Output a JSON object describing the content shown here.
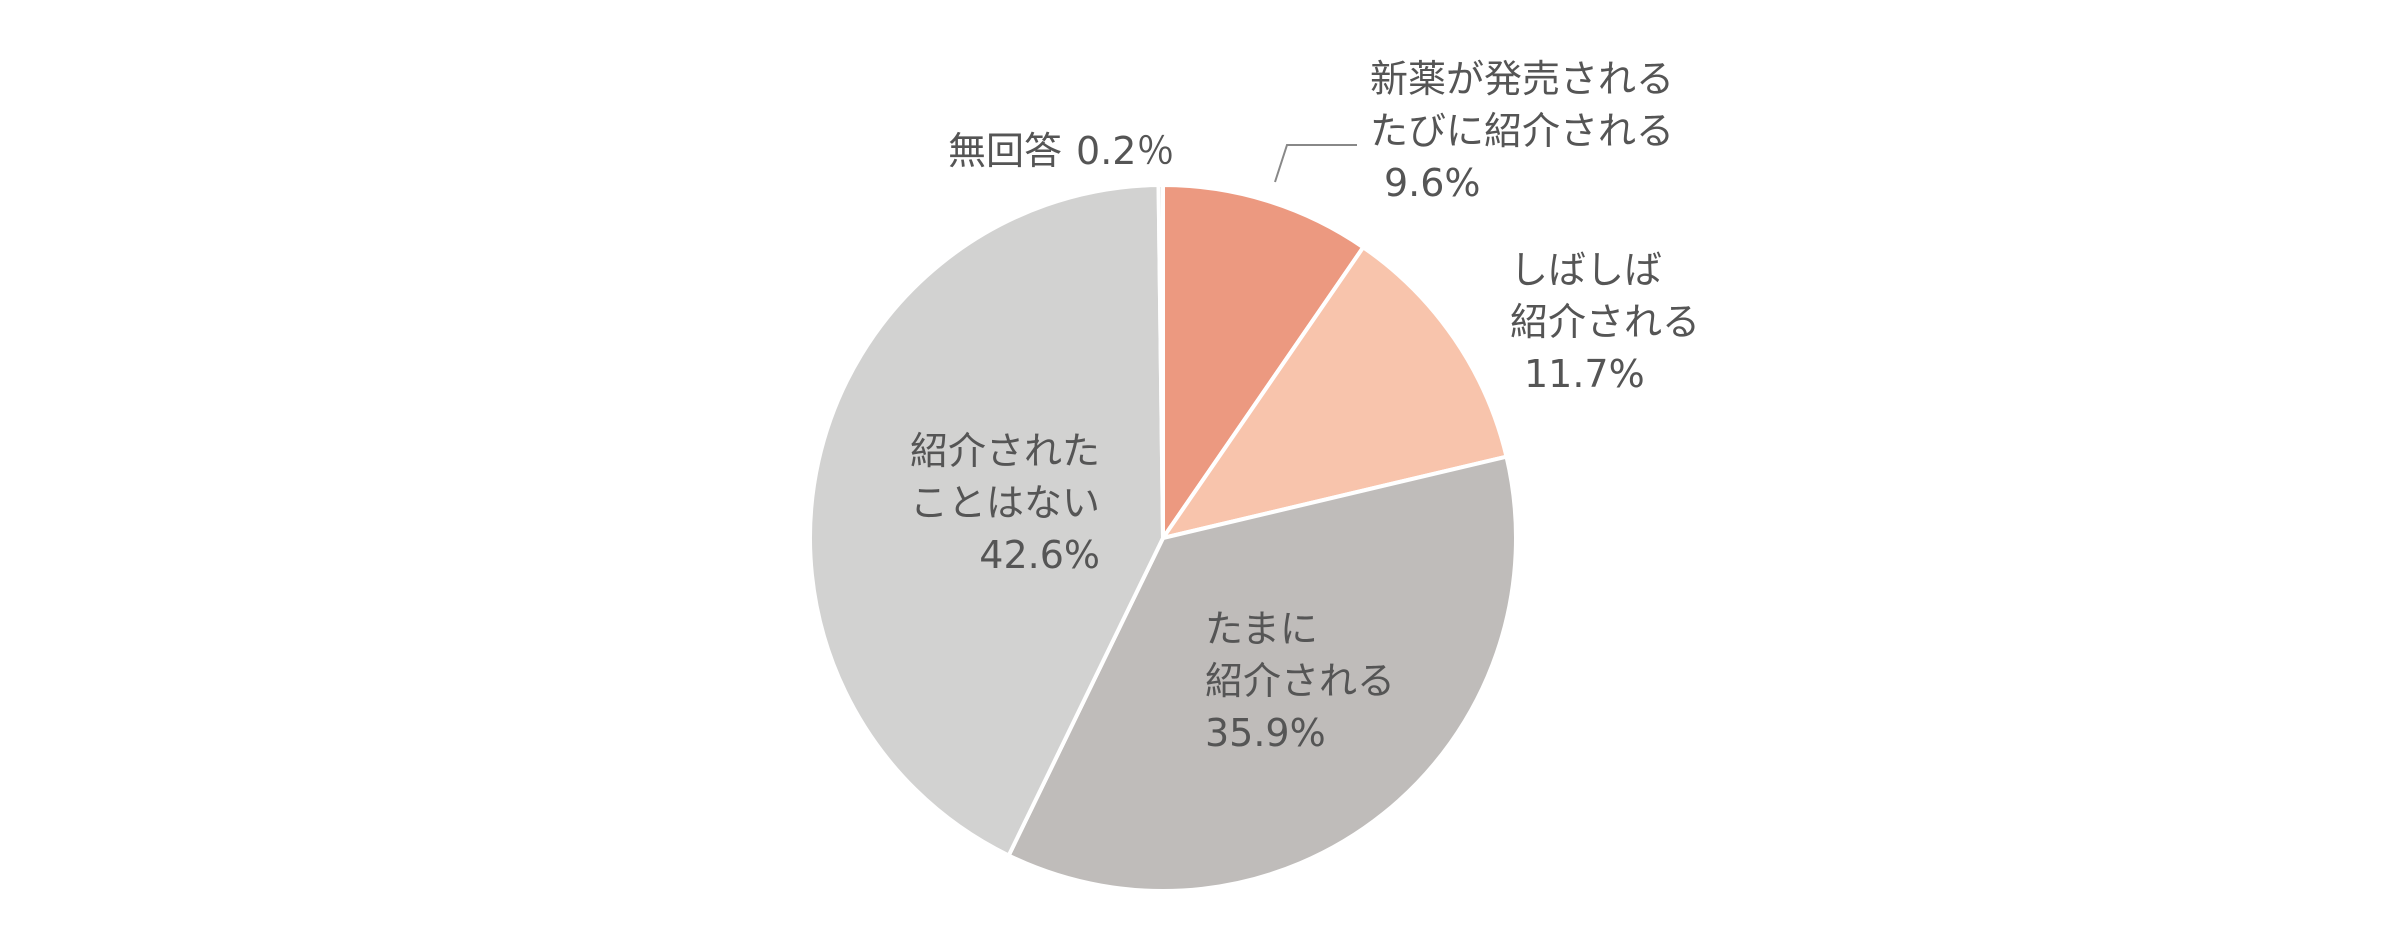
{
  "chart_data": {
    "type": "pie",
    "title": "",
    "unit": "%",
    "slices": [
      {
        "label_lines": [
          "新薬が発売される",
          "たびに紹介される"
        ],
        "value": 9.6,
        "value_label": "9.6%",
        "color": "#ec9980"
      },
      {
        "label_lines": [
          "しばしば",
          "紹介される"
        ],
        "value": 11.7,
        "value_label": "11.7%",
        "color": "#f8c4ac"
      },
      {
        "label_lines": [
          "たまに",
          "紹介される"
        ],
        "value": 35.9,
        "value_label": "35.9%",
        "color": "#bfbcba"
      },
      {
        "label_lines": [
          "紹介された",
          "ことはない"
        ],
        "value": 42.6,
        "value_label": "42.6%",
        "color": "#d2d2d1"
      },
      {
        "label_lines": [
          "無回答"
        ],
        "value": 0.2,
        "value_label": "0.2％",
        "color": "#d2d2d1"
      }
    ],
    "start_angle_deg": 0,
    "direction": "clockwise",
    "legend": "none"
  }
}
